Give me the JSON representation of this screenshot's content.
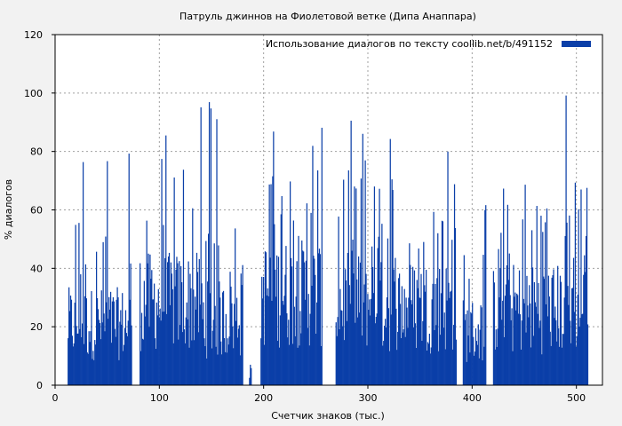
{
  "chart_data": {
    "type": "bar",
    "title": "Патруль джиннов на Фиолетовой ветке (Дипа Анаппара)",
    "xlabel": "Счетчик знаков (тыс.)",
    "ylabel": "% диалогов",
    "xlim": [
      0,
      525
    ],
    "ylim": [
      0,
      120
    ],
    "xticks": [
      0,
      100,
      200,
      300,
      400,
      500
    ],
    "yticks": [
      0,
      20,
      40,
      60,
      80,
      100,
      120
    ],
    "grid": true,
    "legend_position": "top-right",
    "series": [
      {
        "name": "Использование диалогов по тексту  coollib.net/b/491152",
        "color": "#0b3fa8",
        "segments": [
          {
            "from": 12,
            "to": 73,
            "avg": 28,
            "peak": 83
          },
          {
            "from": 81,
            "to": 141,
            "avg": 38,
            "peak": 100
          },
          {
            "from": 141,
            "to": 180,
            "avg": 30,
            "peak": 100
          },
          {
            "from": 186,
            "to": 188,
            "avg": 5,
            "peak": 7
          },
          {
            "from": 197,
            "to": 256,
            "avg": 42,
            "peak": 100
          },
          {
            "from": 269,
            "to": 305,
            "avg": 38,
            "peak": 91
          },
          {
            "from": 305,
            "to": 385,
            "avg": 36,
            "peak": 88
          },
          {
            "from": 391,
            "to": 413,
            "avg": 25,
            "peak": 62
          },
          {
            "from": 420,
            "to": 511,
            "avg": 35,
            "peak": 100
          }
        ]
      }
    ]
  }
}
